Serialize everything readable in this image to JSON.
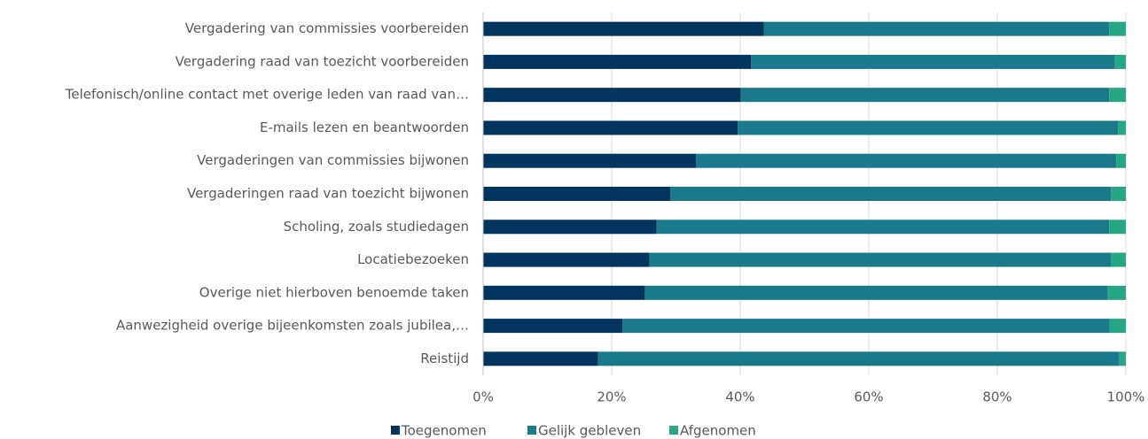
{
  "chart_data": {
    "type": "stacked_bar_horizontal",
    "categories": [
      "Vergadering van commissies voorbereiden",
      "Vergadering raad van toezicht voorbereiden",
      "Telefonisch/online contact met overige leden van raad van…",
      "E-mails lezen en beantwoorden",
      "Vergaderingen van commissies bijwonen",
      "Vergaderingen raad van toezicht bijwonen",
      "Scholing, zoals studiedagen",
      "Locatiebezoeken",
      "Overige niet hierboven benoemde taken",
      "Aanwezigheid overige bijeenkomsten zoals jubilea,…",
      "Reistijd"
    ],
    "series": [
      {
        "name": "Toegenomen",
        "color": "#003560",
        "values": [
          43.7,
          41.7,
          40.1,
          39.6,
          33.1,
          29.1,
          27.0,
          25.9,
          25.2,
          21.7,
          17.9
        ]
      },
      {
        "name": "Gelijk gebleven",
        "color": "#1b7a8a",
        "values": [
          53.7,
          56.6,
          57.3,
          59.2,
          65.4,
          68.6,
          70.4,
          71.8,
          72.0,
          75.8,
          81.1
        ]
      },
      {
        "name": "Afgenomen",
        "color": "#27a684",
        "values": [
          2.6,
          1.7,
          2.6,
          1.2,
          1.5,
          2.3,
          2.6,
          2.3,
          2.8,
          2.5,
          1.0
        ]
      }
    ],
    "xlim": [
      0,
      100
    ],
    "xticks": [
      {
        "value": 0,
        "label": "0%"
      },
      {
        "value": 20,
        "label": "20%"
      },
      {
        "value": 40,
        "label": "40%"
      },
      {
        "value": 60,
        "label": "60%"
      },
      {
        "value": 80,
        "label": "80%"
      },
      {
        "value": 100,
        "label": "100%"
      }
    ],
    "grid": true,
    "legend": "bottom"
  }
}
